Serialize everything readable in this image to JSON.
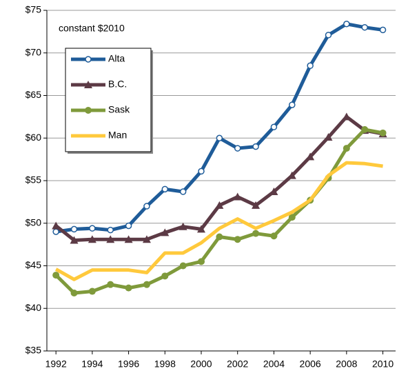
{
  "chart_data": {
    "type": "line",
    "annotation": "constant $2010",
    "x": [
      1992,
      1993,
      1994,
      1995,
      1996,
      1997,
      1998,
      1999,
      2000,
      2001,
      2002,
      2003,
      2004,
      2005,
      2006,
      2007,
      2008,
      2009,
      2010
    ],
    "xlim": [
      1991.5,
      2010.7
    ],
    "xticks": [
      1992,
      1994,
      1996,
      1998,
      2000,
      2002,
      2004,
      2006,
      2008,
      2010
    ],
    "ylim": [
      35,
      75
    ],
    "yticks": [
      {
        "value": 35,
        "label": "$35"
      },
      {
        "value": 40,
        "label": "$40"
      },
      {
        "value": 45,
        "label": "$45"
      },
      {
        "value": 50,
        "label": "$50"
      },
      {
        "value": 55,
        "label": "$55"
      },
      {
        "value": 60,
        "label": "$60"
      },
      {
        "value": 65,
        "label": "$65"
      },
      {
        "value": 70,
        "label": "$70"
      },
      {
        "value": 75,
        "label": "$75"
      }
    ],
    "grid": true,
    "legend": "upper left",
    "series": [
      {
        "name": "Alta",
        "color": "#1f5c99",
        "marker": "open-circle",
        "values": [
          49.0,
          49.3,
          49.4,
          49.2,
          49.7,
          52.0,
          54.0,
          53.7,
          56.1,
          60.0,
          58.8,
          59.0,
          61.3,
          63.9,
          68.5,
          72.1,
          73.4,
          73.0,
          72.7
        ]
      },
      {
        "name": "B.C.",
        "color": "#5c3a45",
        "marker": "triangle",
        "values": [
          49.7,
          48.0,
          48.1,
          48.1,
          48.1,
          48.1,
          48.9,
          49.6,
          49.3,
          52.1,
          53.1,
          52.1,
          53.7,
          55.6,
          57.8,
          60.1,
          62.5,
          60.9,
          60.5
        ]
      },
      {
        "name": "Sask",
        "color": "#7f9a3b",
        "marker": "circle",
        "values": [
          43.9,
          41.8,
          42.0,
          42.8,
          42.4,
          42.8,
          43.8,
          45.0,
          45.5,
          48.4,
          48.1,
          48.8,
          48.5,
          50.7,
          52.7,
          55.3,
          58.8,
          61.0,
          60.6
        ]
      },
      {
        "name": "Man",
        "color": "#ffc93c",
        "marker": "none",
        "values": [
          44.6,
          43.4,
          44.5,
          44.5,
          44.5,
          44.2,
          46.5,
          46.5,
          47.7,
          49.4,
          50.5,
          49.4,
          50.3,
          51.3,
          52.7,
          55.6,
          57.1,
          57.0,
          56.7
        ]
      }
    ]
  }
}
